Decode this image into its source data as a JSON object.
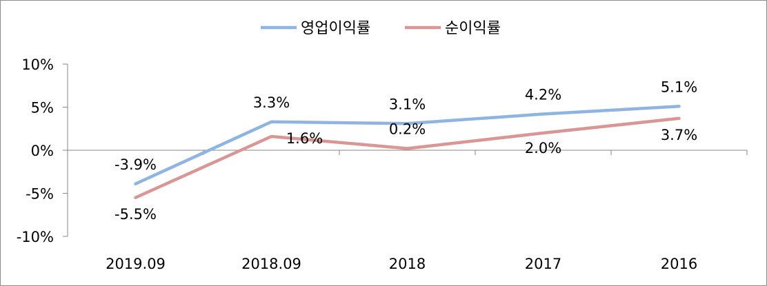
{
  "chart_data": {
    "type": "line",
    "categories": [
      "2019.09",
      "2018.09",
      "2018",
      "2017",
      "2016"
    ],
    "series": [
      {
        "name": "영업이익률",
        "values": [
          -3.9,
          3.3,
          3.1,
          4.2,
          5.1
        ],
        "labels": [
          "-3.9%",
          "3.3%",
          "3.1%",
          "4.2%",
          "5.1%"
        ],
        "color": "#8eb4e3"
      },
      {
        "name": "순이익률",
        "values": [
          -5.5,
          1.6,
          0.2,
          2.0,
          3.7
        ],
        "labels": [
          "-5.5%",
          "1.6%",
          "0.2%",
          "2.0%",
          "3.7%"
        ],
        "color": "#d99694"
      }
    ],
    "ylim": [
      -10,
      10
    ],
    "yticks": [
      -10,
      -5,
      0,
      5,
      10
    ],
    "ytick_labels": [
      "-10%",
      "-5%",
      "0%",
      "5%",
      "10%"
    ],
    "legend": "top",
    "grid": false
  }
}
